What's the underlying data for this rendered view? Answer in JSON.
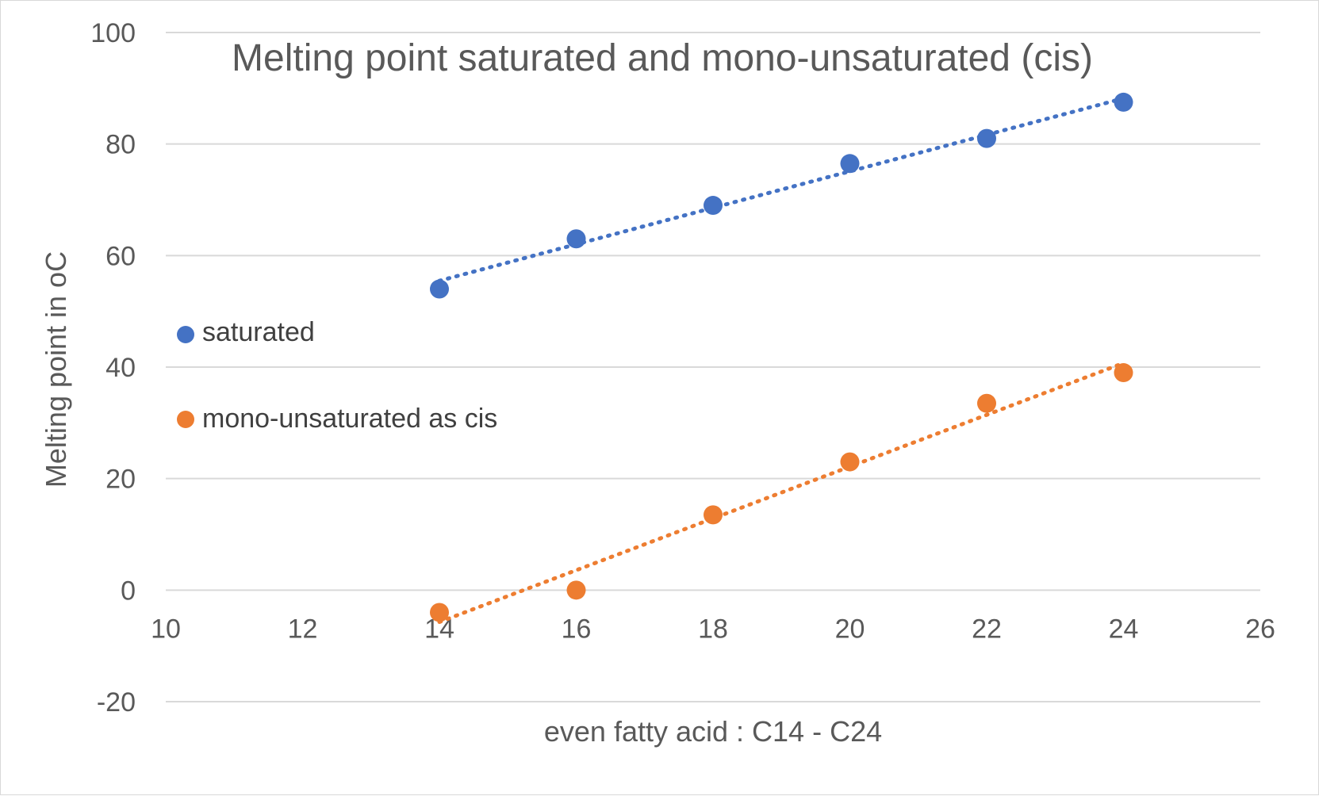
{
  "chart_data": {
    "type": "scatter",
    "title": "Melting point saturated and mono-unsaturated (cis)",
    "xlabel": "even fatty acid : C14 - C24",
    "ylabel": "Melting point in oC",
    "xlim": [
      10,
      26
    ],
    "ylim": [
      -20,
      100
    ],
    "xticks": [
      10,
      12,
      14,
      16,
      18,
      20,
      22,
      24,
      26
    ],
    "yticks": [
      -20,
      0,
      20,
      40,
      60,
      80,
      100
    ],
    "grid": "horizontal",
    "legend_position": "left",
    "series": [
      {
        "name": "saturated",
        "color": "#4472C4",
        "x": [
          14,
          16,
          18,
          20,
          22,
          24
        ],
        "y": [
          54,
          63,
          69,
          76.5,
          81,
          87.5
        ],
        "trendline": "linear-dotted"
      },
      {
        "name": "mono-unsaturated as cis",
        "color": "#ED7D31",
        "x": [
          14,
          16,
          18,
          20,
          22,
          24
        ],
        "y": [
          -4,
          0,
          13.5,
          23,
          33.5,
          39
        ],
        "trendline": "linear-dotted"
      }
    ]
  }
}
